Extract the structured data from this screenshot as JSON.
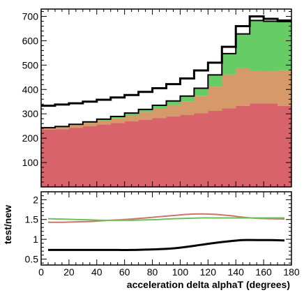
{
  "chart_data": [
    {
      "panel": "main",
      "type": "bar",
      "stacked": true,
      "histogram": true,
      "x_bin_edges": [
        0,
        10,
        20,
        30,
        40,
        50,
        60,
        70,
        80,
        90,
        100,
        110,
        120,
        130,
        140,
        150,
        160,
        170,
        180
      ],
      "ylim": [
        0,
        730
      ],
      "xlim": [
        0,
        180
      ],
      "y_ticks": [
        100,
        200,
        300,
        400,
        500,
        600,
        700
      ],
      "x_ticks": [
        0,
        20,
        40,
        60,
        80,
        100,
        120,
        140,
        160,
        180
      ],
      "grid": false,
      "series": [
        {
          "color": "#d9636b",
          "values": [
            235,
            237,
            243,
            249,
            256,
            262,
            269,
            276,
            283,
            290,
            296,
            303,
            312,
            322,
            333,
            343,
            342,
            333
          ]
        },
        {
          "color": "#d69a6a",
          "values": [
            7,
            9,
            11,
            14,
            17,
            21,
            26,
            32,
            39,
            46,
            55,
            70,
            100,
            140,
            155,
            135,
            133,
            146
          ]
        },
        {
          "color": "#66cc66",
          "values": [
            1,
            2,
            3,
            4,
            5,
            6,
            8,
            10,
            13,
            17,
            22,
            32,
            48,
            85,
            140,
            205,
            205,
            200
          ]
        }
      ],
      "outline_values": [
        333,
        338,
        343,
        350,
        358,
        367,
        377,
        390,
        405,
        422,
        445,
        478,
        510,
        575,
        660,
        700,
        690,
        683
      ]
    },
    {
      "panel": "ratio",
      "type": "line",
      "ylabel": "test/new",
      "xlabel": "acceleration delta alphaT (degrees)",
      "xlim": [
        0,
        180
      ],
      "ylim": [
        0.35,
        2.2
      ],
      "y_ticks": [
        0.5,
        1,
        1.5,
        2
      ],
      "x_ticks": [
        0,
        20,
        40,
        60,
        80,
        100,
        120,
        140,
        160,
        180
      ],
      "x": [
        5,
        15,
        25,
        35,
        45,
        55,
        65,
        75,
        85,
        95,
        105,
        115,
        125,
        135,
        145,
        155,
        165,
        175
      ],
      "series": [
        {
          "color": "#000000",
          "values": [
            0.73,
            0.73,
            0.73,
            0.73,
            0.73,
            0.73,
            0.73,
            0.74,
            0.75,
            0.77,
            0.81,
            0.86,
            0.91,
            0.95,
            0.98,
            0.98,
            0.98,
            0.97
          ]
        },
        {
          "color": "#c9756d",
          "values": [
            1.43,
            1.43,
            1.44,
            1.45,
            1.47,
            1.49,
            1.51,
            1.54,
            1.57,
            1.6,
            1.63,
            1.64,
            1.63,
            1.6,
            1.56,
            1.53,
            1.52,
            1.51
          ]
        },
        {
          "color": "#6fbf5a",
          "values": [
            1.52,
            1.51,
            1.5,
            1.49,
            1.48,
            1.48,
            1.48,
            1.49,
            1.5,
            1.52,
            1.53,
            1.54,
            1.54,
            1.54,
            1.54,
            1.54,
            1.54,
            1.54
          ]
        }
      ]
    }
  ]
}
